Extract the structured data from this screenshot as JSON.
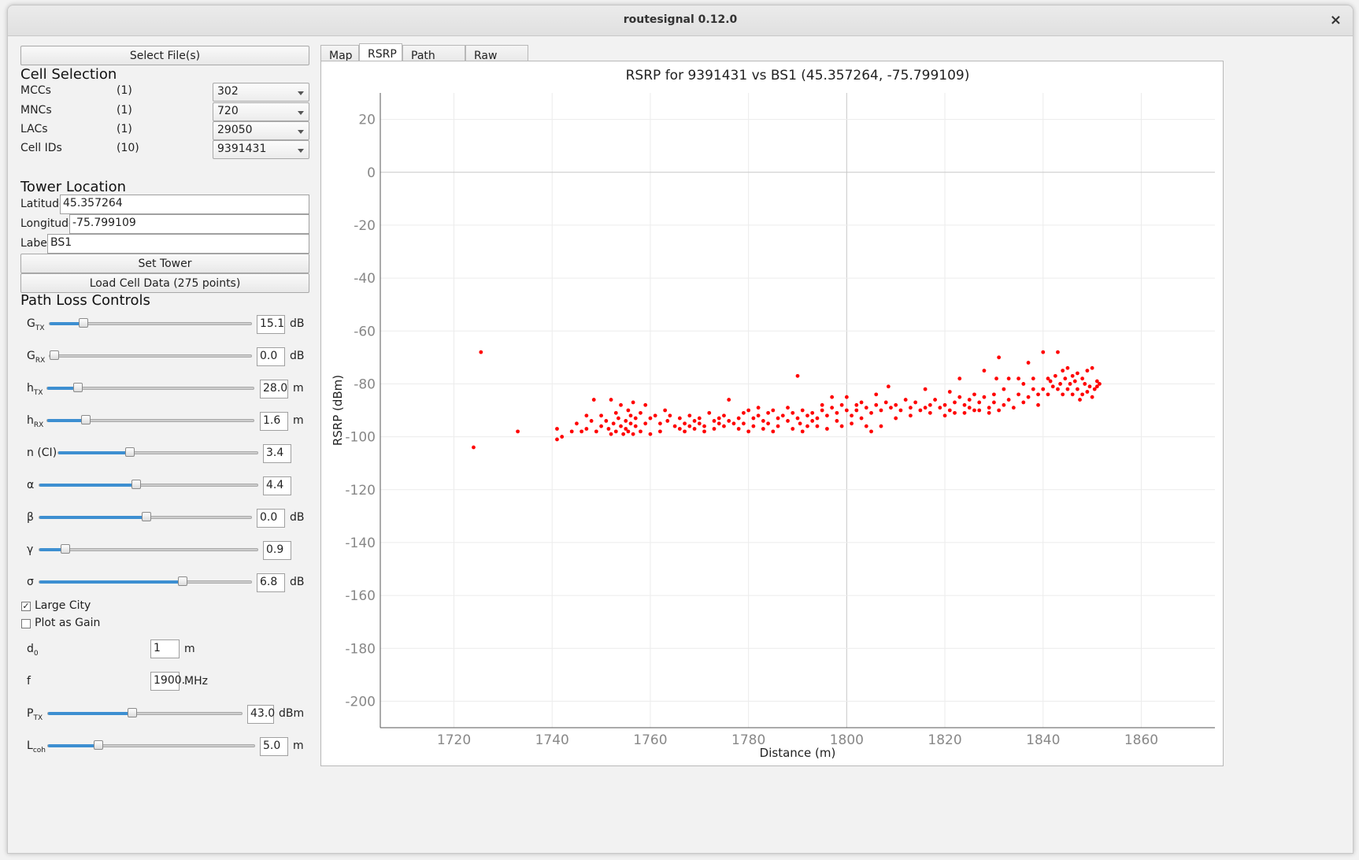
{
  "window": {
    "title": "routesignal 0.12.0",
    "close_glyph": "×"
  },
  "left": {
    "select_files": "Select File(s)",
    "cell_selection": {
      "title": "Cell Selection",
      "rows": [
        {
          "label": "MCCs",
          "count": "(1)",
          "value": "302"
        },
        {
          "label": "MNCs",
          "count": "(1)",
          "value": "720"
        },
        {
          "label": "LACs",
          "count": "(1)",
          "value": "29050"
        },
        {
          "label": "Cell IDs",
          "count": "(10)",
          "value": "9391431"
        }
      ]
    },
    "tower": {
      "title": "Tower Location",
      "latitude_label": "Latitude",
      "latitude": "45.357264",
      "longitude_label": "Longitude",
      "longitude": "-75.799109",
      "label_label": "Label",
      "label": "BS1",
      "set_tower": "Set Tower",
      "load_cell": "Load Cell Data (275 points)"
    },
    "path_loss": {
      "title": "Path Loss Controls",
      "sliders": [
        {
          "main": "G",
          "sub": "TX",
          "value": "15.1",
          "unit": "dB",
          "level": 0.15
        },
        {
          "main": "G",
          "sub": "RX",
          "value": "0.0",
          "unit": "dB",
          "level": 0.0
        },
        {
          "main": "h",
          "sub": "TX",
          "value": "28.0",
          "unit": "m",
          "level": 0.13
        },
        {
          "main": "h",
          "sub": "RX",
          "value": "1.6",
          "unit": "m",
          "level": 0.17
        },
        {
          "main": "n (CI)",
          "sub": "",
          "value": "3.4",
          "unit": "",
          "level": 0.35
        },
        {
          "main": "α",
          "sub": "",
          "value": "4.4",
          "unit": "",
          "level": 0.44
        },
        {
          "main": "β",
          "sub": "",
          "value": "0.0",
          "unit": "dB",
          "level": 0.5
        },
        {
          "main": "γ",
          "sub": "",
          "value": "0.9",
          "unit": "",
          "level": 0.1
        },
        {
          "main": "σ",
          "sub": "",
          "value": "6.8",
          "unit": "dB",
          "level": 0.68
        }
      ],
      "large_city": "Large City",
      "large_city_checked": true,
      "plot_as_gain": "Plot as Gain",
      "plot_as_gain_checked": false,
      "d0": {
        "main": "d",
        "sub": "0",
        "value": "1",
        "unit": "m"
      },
      "f": {
        "main": "f",
        "value": "1900.",
        "unit": "MHz"
      },
      "ptx": {
        "main": "P",
        "sub": "TX",
        "value": "43.0",
        "unit": "dBm",
        "level": 0.43
      },
      "lcoh": {
        "main": "L",
        "sub": "coh",
        "value": "5.0",
        "unit": "m",
        "level": 0.23
      }
    }
  },
  "tabs": [
    {
      "label": "Map",
      "active": false
    },
    {
      "label": "RSRP",
      "active": true
    },
    {
      "label": "Path Loss",
      "active": false
    },
    {
      "label": "Raw Data",
      "active": false
    }
  ],
  "colors": {
    "accent": "#3d8fd1",
    "points": "#ff0000"
  },
  "chart_data": {
    "type": "scatter",
    "title": "RSRP for 9391431 vs BS1 (45.357264, -75.799109)",
    "xlabel": "Distance (m)",
    "ylabel": "RSRP (dBm)",
    "xlim": [
      1705,
      1875
    ],
    "ylim": [
      -210,
      30
    ],
    "xticks": [
      1720,
      1740,
      1760,
      1780,
      1800,
      1820,
      1840,
      1860
    ],
    "yticks": [
      20,
      0,
      -20,
      -40,
      -60,
      -80,
      -100,
      -120,
      -140,
      -160,
      -180,
      -200
    ],
    "grid": true,
    "series": [
      {
        "color": "#ff0000",
        "points": [
          [
            1724,
            -104
          ],
          [
            1725.5,
            -68
          ],
          [
            1733,
            -98
          ],
          [
            1741,
            -97
          ],
          [
            1741,
            -101
          ],
          [
            1742,
            -100
          ],
          [
            1744,
            -98
          ],
          [
            1745,
            -95
          ],
          [
            1746,
            -98
          ],
          [
            1747,
            -92
          ],
          [
            1747,
            -97
          ],
          [
            1748,
            -94
          ],
          [
            1748.5,
            -86
          ],
          [
            1749,
            -98
          ],
          [
            1750,
            -92
          ],
          [
            1750,
            -96
          ],
          [
            1751,
            -94
          ],
          [
            1751.5,
            -97
          ],
          [
            1752,
            -86
          ],
          [
            1752,
            -99
          ],
          [
            1752.5,
            -95
          ],
          [
            1753,
            -91
          ],
          [
            1753,
            -98
          ],
          [
            1753.5,
            -93
          ],
          [
            1754,
            -96
          ],
          [
            1754,
            -88
          ],
          [
            1754.5,
            -99
          ],
          [
            1755,
            -94
          ],
          [
            1755,
            -97
          ],
          [
            1755.5,
            -90
          ],
          [
            1755.5,
            -98
          ],
          [
            1756,
            -92
          ],
          [
            1756,
            -95
          ],
          [
            1756.5,
            -87
          ],
          [
            1756.5,
            -99
          ],
          [
            1757,
            -96
          ],
          [
            1757,
            -93
          ],
          [
            1758,
            -91
          ],
          [
            1758,
            -98
          ],
          [
            1759,
            -95
          ],
          [
            1759,
            -88
          ],
          [
            1760,
            -93
          ],
          [
            1760,
            -99
          ],
          [
            1761,
            -92
          ],
          [
            1762,
            -95
          ],
          [
            1762,
            -98
          ],
          [
            1763,
            -90
          ],
          [
            1763.5,
            -94
          ],
          [
            1764,
            -92
          ],
          [
            1765,
            -96
          ],
          [
            1766,
            -93
          ],
          [
            1766,
            -97
          ],
          [
            1767,
            -95
          ],
          [
            1767,
            -98
          ],
          [
            1768,
            -92
          ],
          [
            1768,
            -96
          ],
          [
            1769,
            -94
          ],
          [
            1769,
            -97
          ],
          [
            1770,
            -95
          ],
          [
            1770,
            -93
          ],
          [
            1771,
            -96
          ],
          [
            1771,
            -98
          ],
          [
            1772,
            -91
          ],
          [
            1773,
            -94
          ],
          [
            1773,
            -97
          ],
          [
            1774,
            -95
          ],
          [
            1774,
            -93
          ],
          [
            1775,
            -92
          ],
          [
            1775,
            -96
          ],
          [
            1776,
            -94
          ],
          [
            1776,
            -86
          ],
          [
            1777,
            -95
          ],
          [
            1778,
            -93
          ],
          [
            1778,
            -97
          ],
          [
            1779,
            -91
          ],
          [
            1779,
            -95
          ],
          [
            1780,
            -90
          ],
          [
            1780,
            -98
          ],
          [
            1781,
            -93
          ],
          [
            1781,
            -96
          ],
          [
            1782,
            -92
          ],
          [
            1782,
            -89
          ],
          [
            1783,
            -94
          ],
          [
            1783,
            -97
          ],
          [
            1784,
            -91
          ],
          [
            1784,
            -95
          ],
          [
            1785,
            -90
          ],
          [
            1785,
            -98
          ],
          [
            1786,
            -93
          ],
          [
            1786,
            -96
          ],
          [
            1787,
            -92
          ],
          [
            1788,
            -89
          ],
          [
            1788,
            -94
          ],
          [
            1789,
            -91
          ],
          [
            1789,
            -97
          ],
          [
            1790,
            -77
          ],
          [
            1790,
            -93
          ],
          [
            1790.5,
            -95
          ],
          [
            1791,
            -90
          ],
          [
            1791,
            -98
          ],
          [
            1792,
            -92
          ],
          [
            1792,
            -96
          ],
          [
            1793,
            -91
          ],
          [
            1793,
            -94
          ],
          [
            1794,
            -93
          ],
          [
            1794,
            -96
          ],
          [
            1795,
            -90
          ],
          [
            1795,
            -88
          ],
          [
            1796,
            -92
          ],
          [
            1796,
            -97
          ],
          [
            1797,
            -89
          ],
          [
            1797,
            -85
          ],
          [
            1798,
            -91
          ],
          [
            1798,
            -94
          ],
          [
            1799,
            -88
          ],
          [
            1799,
            -96
          ],
          [
            1800,
            -90
          ],
          [
            1800,
            -85
          ],
          [
            1801,
            -92
          ],
          [
            1801,
            -95
          ],
          [
            1802,
            -88
          ],
          [
            1802,
            -90
          ],
          [
            1803,
            -87
          ],
          [
            1803,
            -93
          ],
          [
            1804,
            -89
          ],
          [
            1804,
            -96
          ],
          [
            1805,
            -91
          ],
          [
            1805,
            -98
          ],
          [
            1806,
            -88
          ],
          [
            1806,
            -84
          ],
          [
            1807,
            -90
          ],
          [
            1807,
            -96
          ],
          [
            1808,
            -87
          ],
          [
            1808.5,
            -81
          ],
          [
            1809,
            -89
          ],
          [
            1810,
            -88
          ],
          [
            1810,
            -93
          ],
          [
            1811,
            -90
          ],
          [
            1812,
            -86
          ],
          [
            1813,
            -89
          ],
          [
            1813,
            -92
          ],
          [
            1814,
            -87
          ],
          [
            1815,
            -90
          ],
          [
            1816,
            -82
          ],
          [
            1816,
            -89
          ],
          [
            1817,
            -88
          ],
          [
            1817,
            -91
          ],
          [
            1818,
            -86
          ],
          [
            1819,
            -89
          ],
          [
            1820,
            -88
          ],
          [
            1820,
            -92
          ],
          [
            1821,
            -83
          ],
          [
            1821,
            -90
          ],
          [
            1822,
            -87
          ],
          [
            1822,
            -91
          ],
          [
            1823,
            -85
          ],
          [
            1823,
            -78
          ],
          [
            1824,
            -88
          ],
          [
            1824,
            -91
          ],
          [
            1825,
            -86
          ],
          [
            1825,
            -89
          ],
          [
            1826,
            -84
          ],
          [
            1826,
            -90
          ],
          [
            1827,
            -87
          ],
          [
            1827,
            -90
          ],
          [
            1828,
            -85
          ],
          [
            1828,
            -75
          ],
          [
            1829,
            -89
          ],
          [
            1829,
            -91
          ],
          [
            1830,
            -84
          ],
          [
            1830,
            -87
          ],
          [
            1830.5,
            -78
          ],
          [
            1831,
            -70
          ],
          [
            1831,
            -90
          ],
          [
            1832,
            -82
          ],
          [
            1832,
            -88
          ],
          [
            1833,
            -86
          ],
          [
            1833,
            -78
          ],
          [
            1834,
            -89
          ],
          [
            1835,
            -78
          ],
          [
            1835,
            -84
          ],
          [
            1836,
            -87
          ],
          [
            1836,
            -80
          ],
          [
            1837,
            -72
          ],
          [
            1837,
            -85
          ],
          [
            1838,
            -82
          ],
          [
            1838,
            -78
          ],
          [
            1839,
            -84
          ],
          [
            1839,
            -88
          ],
          [
            1840,
            -68
          ],
          [
            1840,
            -82
          ],
          [
            1841,
            -78
          ],
          [
            1841,
            -84
          ],
          [
            1841.5,
            -79
          ],
          [
            1842,
            -81
          ],
          [
            1842.5,
            -77
          ],
          [
            1843,
            -68
          ],
          [
            1843,
            -82
          ],
          [
            1843.5,
            -80
          ],
          [
            1844,
            -75
          ],
          [
            1844,
            -84
          ],
          [
            1844.5,
            -78
          ],
          [
            1845,
            -74
          ],
          [
            1845,
            -82
          ],
          [
            1845.5,
            -80
          ],
          [
            1846,
            -77
          ],
          [
            1846,
            -84
          ],
          [
            1846.5,
            -79
          ],
          [
            1847,
            -76
          ],
          [
            1847,
            -82
          ],
          [
            1847.5,
            -86
          ],
          [
            1848,
            -78
          ],
          [
            1848,
            -84
          ],
          [
            1848.5,
            -80
          ],
          [
            1849,
            -75
          ],
          [
            1849,
            -83
          ],
          [
            1849.5,
            -81
          ],
          [
            1850,
            -74
          ],
          [
            1850,
            -85
          ],
          [
            1850.5,
            -82
          ],
          [
            1851,
            -79
          ],
          [
            1851,
            -81
          ],
          [
            1851.5,
            -80
          ]
        ]
      }
    ]
  }
}
